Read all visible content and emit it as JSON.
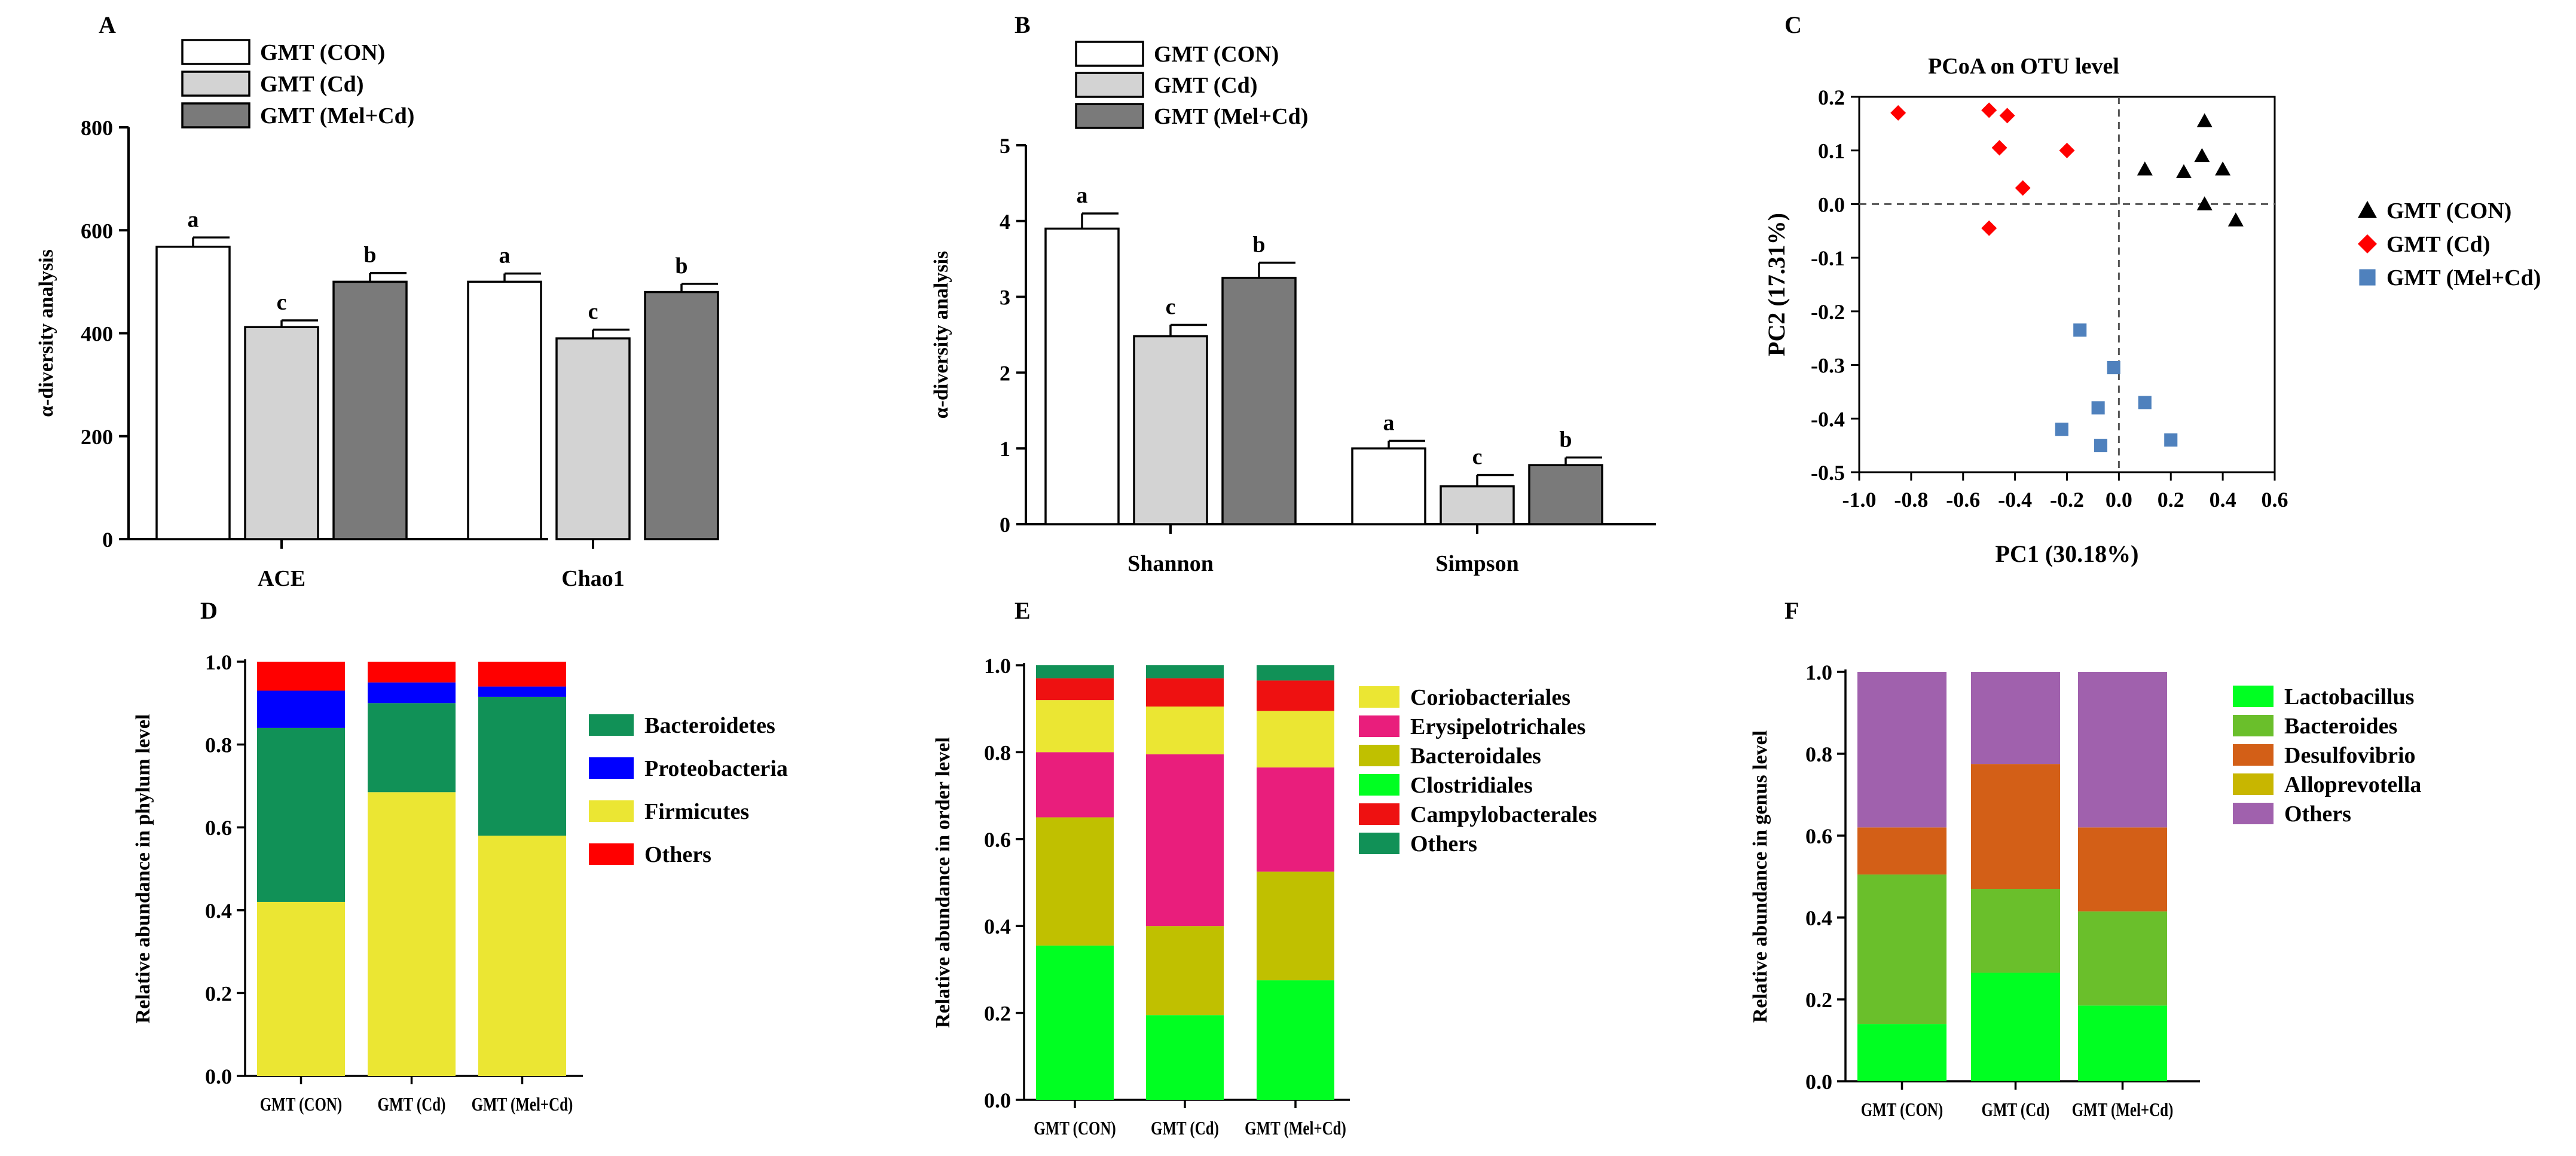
{
  "colors": {
    "bar_con": "#ffffff",
    "bar_cd": "#d3d3d3",
    "bar_melcd": "#7a7a7a",
    "pcoa_con": "#000000",
    "pcoa_cd": "#ff0000",
    "pcoa_melcd": "#4f81bd",
    "bacteroidetes": "#119157",
    "proteobacteria": "#0000ff",
    "firmicutes": "#ebe633",
    "others_red": "#ff0000",
    "coriobacteriales": "#ebe633",
    "erysipelotrichales": "#e91e7c",
    "bacteroidales": "#c0c000",
    "clostridiales": "#00ff22",
    "campylobacterales": "#ee1111",
    "others_green": "#119157",
    "lactobacillus": "#00ff22",
    "bacteroides": "#6abf2b",
    "desulfovibrio": "#d35f17",
    "alloprevotella": "#c8b600",
    "others_purple": "#a061ad"
  },
  "chart_data": [
    {
      "panel": "A",
      "type": "bar",
      "title": "",
      "xlabel": "",
      "ylabel": "α-diversity analysis",
      "ylim": [
        0,
        800
      ],
      "yticks": [
        "0",
        "200",
        "400",
        "600",
        "800"
      ],
      "categories": [
        "ACE",
        "Chao1"
      ],
      "legend": [
        "GMT (CON)",
        "GMT (Cd)",
        "GMT (Mel+Cd)"
      ],
      "series": [
        {
          "name": "GMT (CON)",
          "values": [
            568,
            500
          ],
          "errors": [
            18,
            16
          ],
          "letters": [
            "a",
            "a"
          ]
        },
        {
          "name": "GMT (Cd)",
          "values": [
            412,
            390
          ],
          "errors": [
            13,
            17
          ],
          "letters": [
            "c",
            "c"
          ]
        },
        {
          "name": "GMT (Mel+Cd)",
          "values": [
            500,
            480
          ],
          "errors": [
            17,
            16
          ],
          "letters": [
            "b",
            "b"
          ]
        }
      ]
    },
    {
      "panel": "B",
      "type": "bar",
      "title": "",
      "xlabel": "",
      "ylabel": "α-diversity analysis",
      "ylim": [
        0,
        5
      ],
      "yticks": [
        "0",
        "1",
        "2",
        "3",
        "4",
        "5"
      ],
      "categories": [
        "Shannon",
        "Simpson"
      ],
      "legend": [
        "GMT (CON)",
        "GMT (Cd)",
        "GMT (Mel+Cd)"
      ],
      "series": [
        {
          "name": "GMT (CON)",
          "values": [
            3.9,
            1.0
          ],
          "errors": [
            0.2,
            0.1
          ],
          "letters": [
            "a",
            "a"
          ]
        },
        {
          "name": "GMT (Cd)",
          "values": [
            2.48,
            0.5
          ],
          "errors": [
            0.15,
            0.15
          ],
          "letters": [
            "c",
            "c"
          ]
        },
        {
          "name": "GMT (Mel+Cd)",
          "values": [
            3.25,
            0.78
          ],
          "errors": [
            0.2,
            0.1
          ],
          "letters": [
            "b",
            "b"
          ]
        }
      ]
    },
    {
      "panel": "C",
      "type": "scatter",
      "title": "PCoA on OTU level",
      "xlabel": "PC1 (30.18%)",
      "ylabel": "PC2 (17.31%)",
      "xlim": [
        -1.0,
        0.6
      ],
      "ylim": [
        -0.5,
        0.2
      ],
      "xticks": [
        "-1.0",
        "-0.8",
        "-0.6",
        "-0.4",
        "-0.2",
        "0.0",
        "0.2",
        "0.4",
        "0.6"
      ],
      "yticks": [
        "0.2",
        "0.1",
        "0.0",
        "-0.1",
        "-0.2",
        "-0.3",
        "-0.4",
        "-0.5"
      ],
      "series": [
        {
          "name": "GMT (CON)",
          "marker": "triangle",
          "points": [
            [
              0.33,
              0.155
            ],
            [
              0.1,
              0.065
            ],
            [
              0.32,
              0.09
            ],
            [
              0.25,
              0.06
            ],
            [
              0.4,
              0.065
            ],
            [
              0.33,
              0.0
            ],
            [
              0.45,
              -0.03
            ]
          ]
        },
        {
          "name": "GMT (Cd)",
          "marker": "diamond",
          "points": [
            [
              -0.85,
              0.17
            ],
            [
              -0.5,
              0.175
            ],
            [
              -0.43,
              0.165
            ],
            [
              -0.46,
              0.105
            ],
            [
              -0.2,
              0.1
            ],
            [
              -0.37,
              0.03
            ],
            [
              -0.5,
              -0.045
            ]
          ]
        },
        {
          "name": "GMT (Mel+Cd)",
          "marker": "square",
          "points": [
            [
              -0.15,
              -0.235
            ],
            [
              -0.02,
              -0.305
            ],
            [
              -0.08,
              -0.38
            ],
            [
              0.1,
              -0.37
            ],
            [
              -0.22,
              -0.42
            ],
            [
              -0.07,
              -0.45
            ],
            [
              0.2,
              -0.44
            ]
          ]
        }
      ]
    },
    {
      "panel": "D",
      "type": "bar",
      "stacked": true,
      "ylabel": "Relative abundance in phylum level",
      "ylim": [
        0,
        1.0
      ],
      "yticks": [
        "0.0",
        "0.2",
        "0.4",
        "0.6",
        "0.8",
        "1.0"
      ],
      "categories": [
        "GMT (CON)",
        "GMT (Cd)",
        "GMT (Mel+Cd)"
      ],
      "series": [
        {
          "name": "Firmicutes",
          "values": [
            0.42,
            0.685,
            0.58
          ]
        },
        {
          "name": "Bacteroidetes",
          "values": [
            0.42,
            0.215,
            0.335
          ]
        },
        {
          "name": "Proteobacteria",
          "values": [
            0.09,
            0.05,
            0.025
          ]
        },
        {
          "name": "Others",
          "values": [
            0.07,
            0.05,
            0.06
          ]
        }
      ],
      "legend": [
        "Bacteroidetes",
        "Proteobacteria",
        "Firmicutes",
        "Others"
      ]
    },
    {
      "panel": "E",
      "type": "bar",
      "stacked": true,
      "ylabel": "Relative abundance in order level",
      "ylim": [
        0,
        1.0
      ],
      "yticks": [
        "0.0",
        "0.2",
        "0.4",
        "0.6",
        "0.8",
        "1.0"
      ],
      "categories": [
        "GMT (CON)",
        "GMT (Cd)",
        "GMT (Mel+Cd)"
      ],
      "series": [
        {
          "name": "Clostridiales",
          "values": [
            0.355,
            0.195,
            0.275
          ]
        },
        {
          "name": "Bacteroidales",
          "values": [
            0.295,
            0.205,
            0.25
          ]
        },
        {
          "name": "Erysipelotrichales",
          "values": [
            0.15,
            0.395,
            0.24
          ]
        },
        {
          "name": "Coriobacteriales",
          "values": [
            0.12,
            0.11,
            0.13
          ]
        },
        {
          "name": "Campylobacterales",
          "values": [
            0.05,
            0.065,
            0.07
          ]
        },
        {
          "name": "Others",
          "values": [
            0.03,
            0.03,
            0.035
          ]
        }
      ],
      "legend": [
        "Coriobacteriales",
        "Erysipelotrichales",
        "Bacteroidales",
        "Clostridiales",
        "Campylobacterales",
        "Others"
      ]
    },
    {
      "panel": "F",
      "type": "bar",
      "stacked": true,
      "ylabel": "Relative abundance in genus level",
      "ylim": [
        0,
        1.0
      ],
      "yticks": [
        "0.0",
        "0.2",
        "0.4",
        "0.6",
        "0.8",
        "1.0"
      ],
      "categories": [
        "GMT (CON)",
        "GMT (Cd)",
        "GMT (Mel+Cd)"
      ],
      "series": [
        {
          "name": "Lactobacillus",
          "values": [
            0.14,
            0.265,
            0.185
          ]
        },
        {
          "name": "Bacteroides",
          "values": [
            0.365,
            0.205,
            0.23
          ]
        },
        {
          "name": "Alloprevotella",
          "values": [
            0.0,
            0.0,
            0.0
          ]
        },
        {
          "name": "Desulfovibrio",
          "values": [
            0.115,
            0.305,
            0.205
          ]
        },
        {
          "name": "Others",
          "values": [
            0.38,
            0.225,
            0.38
          ]
        }
      ],
      "legend": [
        "Lactobacillus",
        "Bacteroides",
        "Desulfovibrio",
        "Alloprevotella",
        "Others"
      ]
    }
  ]
}
